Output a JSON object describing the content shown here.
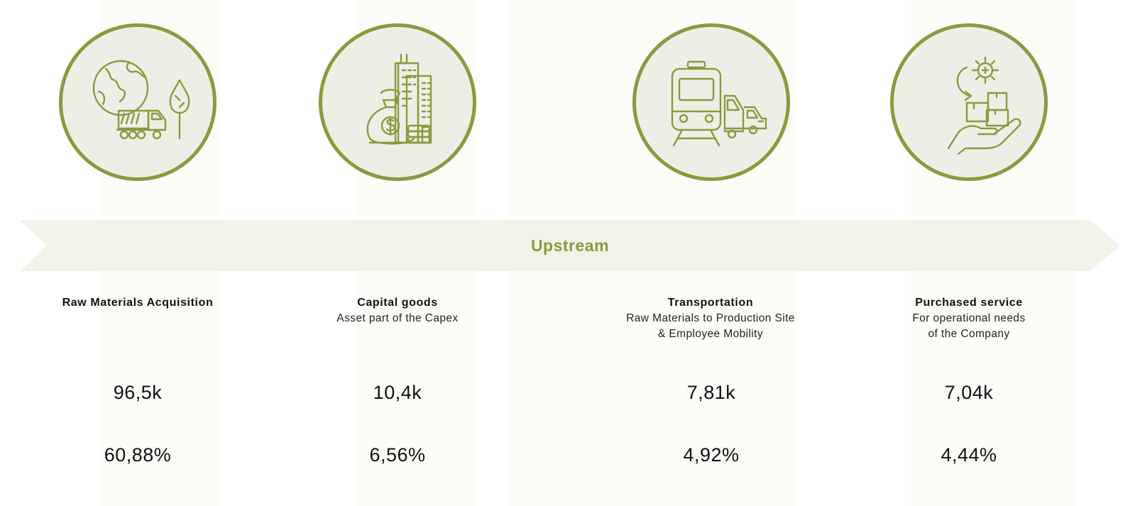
{
  "theme": {
    "accent": "#8a9a3f",
    "circle_fill": "#efeee6",
    "band_fill": "#f2f2e8",
    "text": "#111111"
  },
  "flow": {
    "label": "Upstream"
  },
  "stages": [
    {
      "icon": "globe-truck-tree-icon",
      "title": "Raw Materials Acquisition",
      "subtitle_lines": [],
      "value": "96,5k",
      "share": "60,88%"
    },
    {
      "icon": "buildings-money-bag-icon",
      "title": "Capital goods",
      "subtitle_lines": [
        "Asset part of the Capex"
      ],
      "value": "10,4k",
      "share": "6,56%"
    },
    {
      "icon": "train-truck-car-icon",
      "title": "Transportation",
      "subtitle_lines": [
        "Raw Materials to Production Site",
        "& Employee Mobility"
      ],
      "value": "7,81k",
      "share": "4,92%"
    },
    {
      "icon": "hand-boxes-gear-icon",
      "title": "Purchased service",
      "subtitle_lines": [
        "For operational needs",
        "of the Company"
      ],
      "value": "7,04k",
      "share": "4,44%"
    }
  ]
}
